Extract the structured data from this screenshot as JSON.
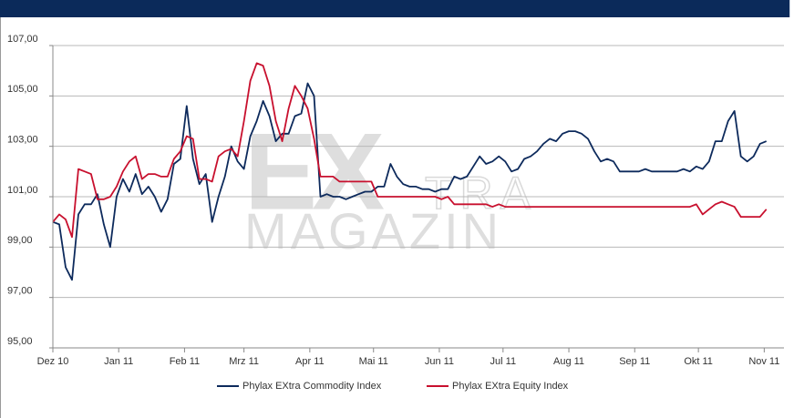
{
  "chart_data": {
    "type": "line",
    "annotations": [
      "EX",
      "TRA",
      "MAGAZIN"
    ],
    "x": [
      0,
      3,
      6,
      9,
      12,
      15,
      18,
      21,
      24,
      27,
      30,
      33,
      36,
      39,
      42,
      45,
      48,
      51,
      54,
      57,
      60,
      63,
      66,
      69,
      72,
      75,
      78,
      81,
      84,
      87,
      90,
      93,
      96,
      99,
      102,
      105,
      108,
      111,
      114,
      117,
      120,
      123,
      126,
      129,
      132,
      135,
      138,
      141,
      144,
      147,
      150,
      153,
      156,
      159,
      162,
      165,
      168,
      171,
      174,
      177,
      180,
      183,
      186,
      189,
      192,
      195,
      198,
      201,
      204,
      207,
      210,
      213,
      216,
      219,
      222,
      225,
      228,
      231,
      234,
      237,
      240,
      243,
      246,
      249,
      252,
      255,
      258,
      261,
      264,
      267,
      270,
      273,
      276,
      279,
      282,
      285,
      288,
      291,
      294,
      297,
      300,
      303,
      306,
      309,
      312,
      315,
      318,
      321,
      324,
      327,
      330,
      333,
      336
    ],
    "series": [
      {
        "name": "Phylax EXtra Commodity Index",
        "color": "#0d2a5c",
        "values": [
          100.0,
          99.9,
          98.2,
          97.7,
          100.3,
          100.7,
          100.7,
          101.1,
          99.9,
          99.0,
          101.0,
          101.7,
          101.2,
          101.9,
          101.1,
          101.4,
          101.0,
          100.4,
          100.9,
          102.3,
          102.5,
          104.6,
          102.5,
          101.5,
          101.9,
          100.0,
          101.0,
          101.8,
          103.0,
          102.4,
          102.1,
          103.4,
          104.0,
          104.8,
          104.2,
          103.2,
          103.5,
          103.5,
          104.2,
          104.3,
          105.5,
          105.0,
          101.0,
          101.1,
          101.0,
          101.0,
          100.9,
          101.0,
          101.1,
          101.2,
          101.2,
          101.4,
          101.4,
          102.3,
          101.8,
          101.5,
          101.4,
          101.4,
          101.3,
          101.3,
          101.2,
          101.3,
          101.3,
          101.8,
          101.7,
          101.8,
          102.2,
          102.6,
          102.3,
          102.4,
          102.6,
          102.4,
          102.0,
          102.1,
          102.5,
          102.6,
          102.8,
          103.1,
          103.3,
          103.2,
          103.5,
          103.6,
          103.6,
          103.5,
          103.3,
          102.8,
          102.4,
          102.5,
          102.4,
          102.0,
          102.0,
          102.0,
          102.0,
          102.1,
          102.0,
          102.0,
          102.0,
          102.0,
          102.0,
          102.1,
          102.0,
          102.2,
          102.1,
          102.4,
          103.2,
          103.2,
          104.0,
          104.4,
          102.6,
          102.4,
          102.6,
          103.1,
          103.2
        ]
      },
      {
        "name": "Phylax EXtra Equity Index",
        "color": "#c8102e",
        "values": [
          100.0,
          100.3,
          100.1,
          99.4,
          102.1,
          102.0,
          101.9,
          100.9,
          100.9,
          101.0,
          101.4,
          102.0,
          102.4,
          102.6,
          101.7,
          101.9,
          101.9,
          101.8,
          101.8,
          102.5,
          102.8,
          103.4,
          103.3,
          101.7,
          101.7,
          101.6,
          102.6,
          102.8,
          102.9,
          102.6,
          104.0,
          105.6,
          106.3,
          106.2,
          105.4,
          104.0,
          103.2,
          104.5,
          105.4,
          105.0,
          104.5,
          103.3,
          101.8,
          101.8,
          101.8,
          101.6,
          101.6,
          101.6,
          101.6,
          101.6,
          101.6,
          101.0,
          101.0,
          101.0,
          101.0,
          101.0,
          101.0,
          101.0,
          101.0,
          101.0,
          101.0,
          100.9,
          101.0,
          100.7,
          100.7,
          100.7,
          100.7,
          100.7,
          100.7,
          100.6,
          100.7,
          100.6,
          100.6,
          100.6,
          100.6,
          100.6,
          100.6,
          100.6,
          100.6,
          100.6,
          100.6,
          100.6,
          100.6,
          100.6,
          100.6,
          100.6,
          100.6,
          100.6,
          100.6,
          100.6,
          100.6,
          100.6,
          100.6,
          100.6,
          100.6,
          100.6,
          100.6,
          100.6,
          100.6,
          100.6,
          100.6,
          100.7,
          100.3,
          100.5,
          100.7,
          100.8,
          100.7,
          100.6,
          100.2,
          100.2,
          100.2,
          100.2,
          100.5
        ]
      }
    ],
    "xlim": [
      0,
      337
    ],
    "xticks": [
      {
        "value": 0,
        "label": "Dez 10"
      },
      {
        "value": 31,
        "label": "Jan 11"
      },
      {
        "value": 62,
        "label": "Feb 11"
      },
      {
        "value": 90,
        "label": "Mrz 11"
      },
      {
        "value": 121,
        "label": "Apr 11"
      },
      {
        "value": 151,
        "label": "Mai 11"
      },
      {
        "value": 182,
        "label": "Jun 11"
      },
      {
        "value": 212,
        "label": "Jul 11"
      },
      {
        "value": 243,
        "label": "Aug 11"
      },
      {
        "value": 274,
        "label": "Sep 11"
      },
      {
        "value": 304,
        "label": "Okt 11"
      },
      {
        "value": 335,
        "label": "Nov 11"
      }
    ],
    "ylim": [
      95,
      107
    ],
    "yticks": [
      {
        "value": 95,
        "label": "95,00"
      },
      {
        "value": 97,
        "label": "97,00"
      },
      {
        "value": 99,
        "label": "99,00"
      },
      {
        "value": 101,
        "label": "101,00"
      },
      {
        "value": 103,
        "label": "103,00"
      },
      {
        "value": 105,
        "label": "105,00"
      },
      {
        "value": 107,
        "label": "107,00"
      }
    ],
    "grid": true,
    "legend": "bottom"
  }
}
